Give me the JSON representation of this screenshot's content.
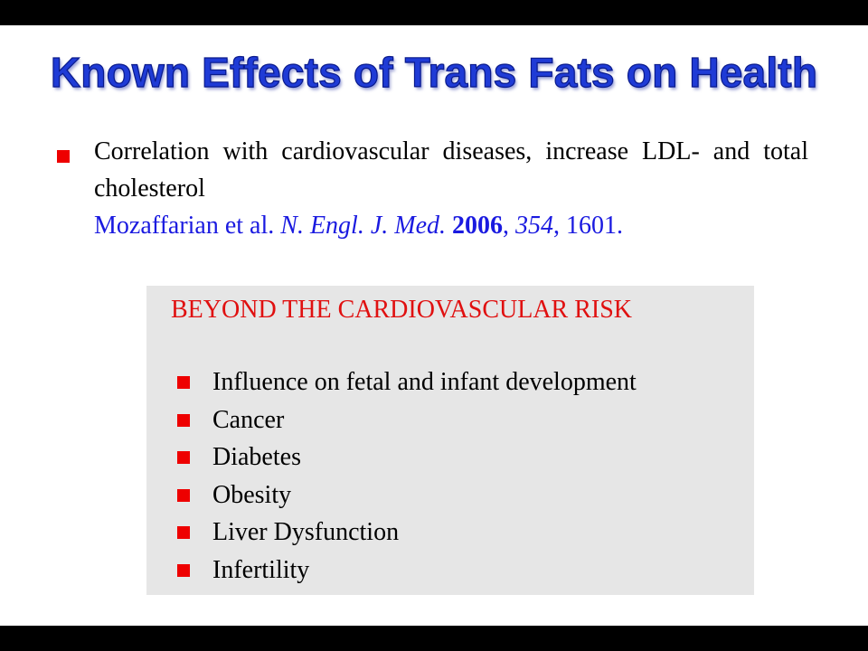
{
  "title": "Known Effects of Trans Fats on Health",
  "main_point": {
    "text": "Correlation with cardiovascular diseases, increase LDL- and total cholesterol",
    "citation": {
      "authors": "Mozaffarian et al.",
      "journal": "N. Engl. J. Med.",
      "year": "2006",
      "sep1": ",",
      "volume": "354",
      "sep2": ",",
      "pages": "1601."
    }
  },
  "box": {
    "heading": "BEYOND THE CARDIOVASCULAR RISK",
    "items": [
      "Influence on fetal and infant development",
      "Cancer",
      "Diabetes",
      "Obesity",
      "Liver Dysfunction",
      "Infertility"
    ]
  },
  "colors": {
    "title": "#1f3bd6",
    "bullet": "#ee0000",
    "citation": "#1a1ae0",
    "box_heading": "#e01010",
    "box_background": "#e6e6e6"
  }
}
